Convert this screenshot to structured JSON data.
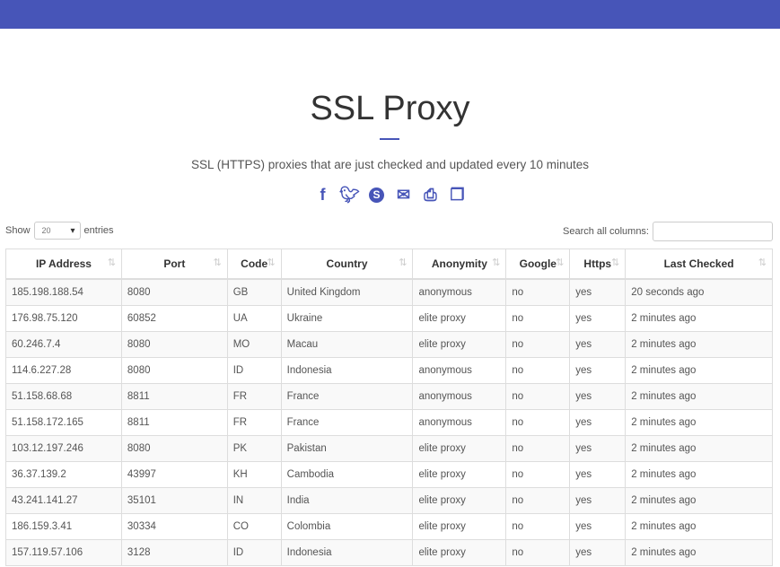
{
  "header": {
    "title": "SSL Proxy",
    "subtitle": "SSL (HTTPS) proxies that are just checked and updated every 10 minutes"
  },
  "share_icons": [
    "facebook-icon",
    "twitter-icon",
    "skype-icon",
    "email-icon",
    "print-icon",
    "copy-icon"
  ],
  "controls": {
    "show_label": "Show",
    "entries_value": "20",
    "entries_label": "entries",
    "search_label": "Search all columns:",
    "search_value": ""
  },
  "table": {
    "columns": [
      "IP Address",
      "Port",
      "Code",
      "Country",
      "Anonymity",
      "Google",
      "Https",
      "Last Checked"
    ],
    "rows": [
      [
        "185.198.188.54",
        "8080",
        "GB",
        "United Kingdom",
        "anonymous",
        "no",
        "yes",
        "20 seconds ago"
      ],
      [
        "176.98.75.120",
        "60852",
        "UA",
        "Ukraine",
        "elite proxy",
        "no",
        "yes",
        "2 minutes ago"
      ],
      [
        "60.246.7.4",
        "8080",
        "MO",
        "Macau",
        "elite proxy",
        "no",
        "yes",
        "2 minutes ago"
      ],
      [
        "114.6.227.28",
        "8080",
        "ID",
        "Indonesia",
        "anonymous",
        "no",
        "yes",
        "2 minutes ago"
      ],
      [
        "51.158.68.68",
        "8811",
        "FR",
        "France",
        "anonymous",
        "no",
        "yes",
        "2 minutes ago"
      ],
      [
        "51.158.172.165",
        "8811",
        "FR",
        "France",
        "anonymous",
        "no",
        "yes",
        "2 minutes ago"
      ],
      [
        "103.12.197.246",
        "8080",
        "PK",
        "Pakistan",
        "elite proxy",
        "no",
        "yes",
        "2 minutes ago"
      ],
      [
        "36.37.139.2",
        "43997",
        "KH",
        "Cambodia",
        "elite proxy",
        "no",
        "yes",
        "2 minutes ago"
      ],
      [
        "43.241.141.27",
        "35101",
        "IN",
        "India",
        "elite proxy",
        "no",
        "yes",
        "2 minutes ago"
      ],
      [
        "186.159.3.41",
        "30334",
        "CO",
        "Colombia",
        "elite proxy",
        "no",
        "yes",
        "2 minutes ago"
      ],
      [
        "157.119.57.106",
        "3128",
        "ID",
        "Indonesia",
        "elite proxy",
        "no",
        "yes",
        "2 minutes ago"
      ]
    ]
  },
  "colors": {
    "accent": "#4755b8"
  }
}
